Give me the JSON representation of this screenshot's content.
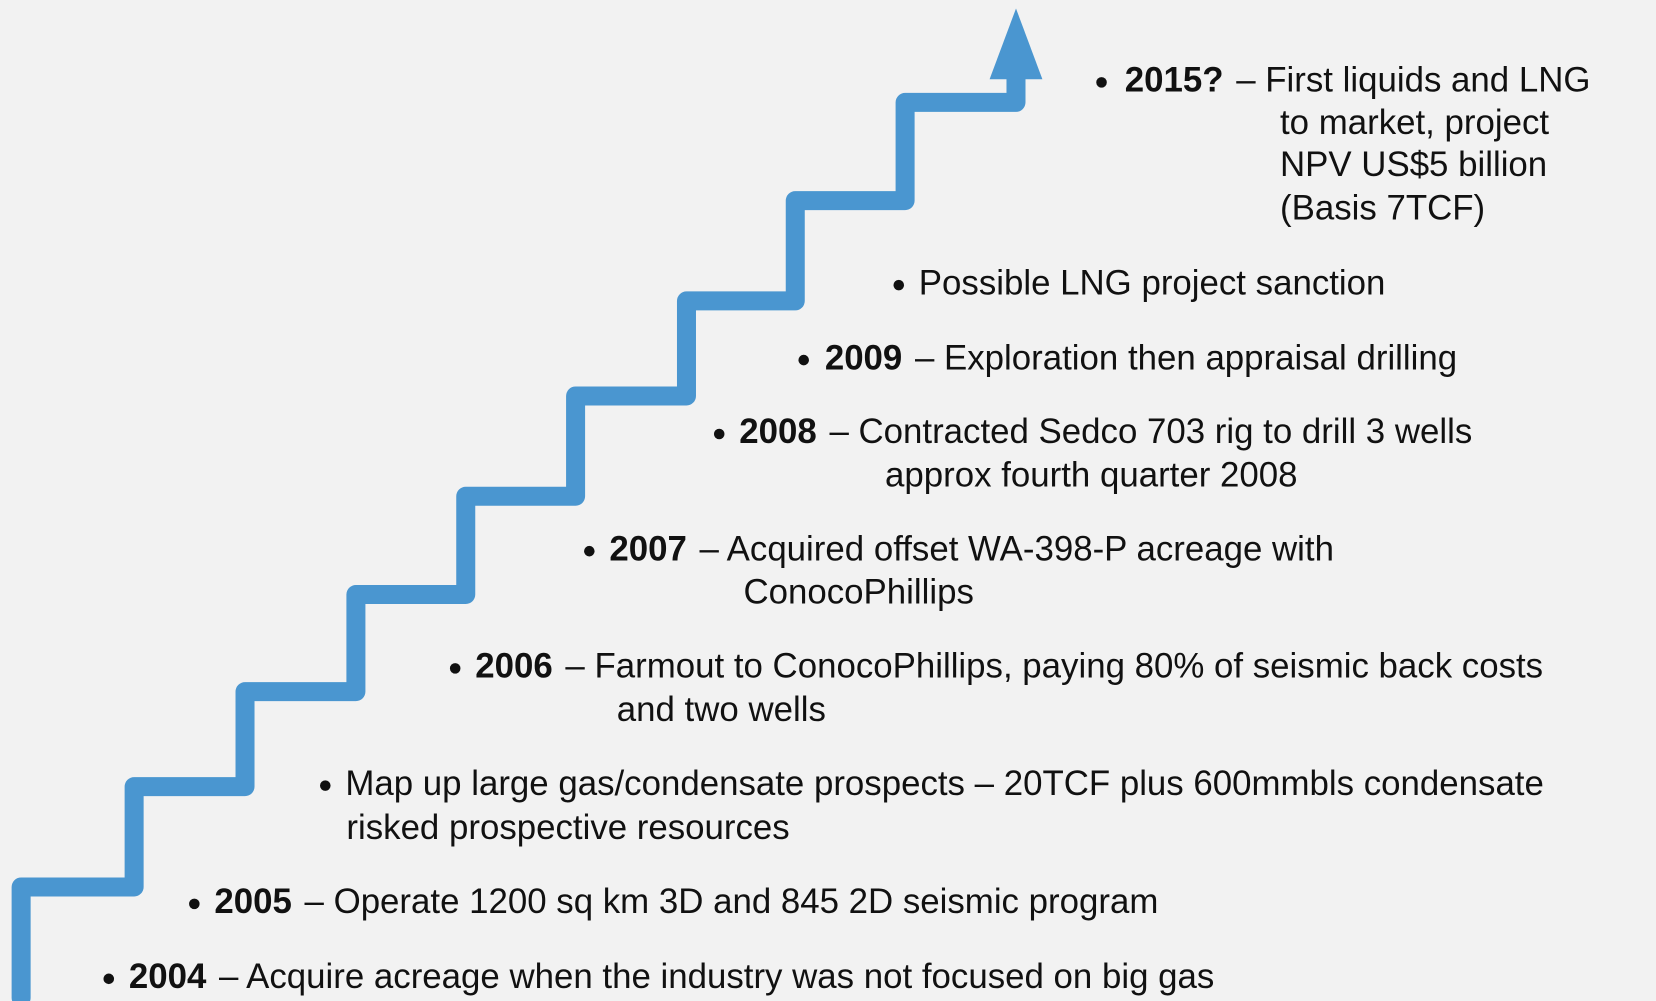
{
  "items": [
    {
      "year": "2015?",
      "lines": [
        "– First liquids and LNG",
        "to market, project",
        "NPV US$5 billion",
        "(Basis 7TCF)"
      ]
    },
    {
      "lines": [
        "Possible LNG project sanction"
      ]
    },
    {
      "year": "2009",
      "lines": [
        "– Exploration then appraisal drilling"
      ]
    },
    {
      "year": "2008",
      "lines": [
        "– Contracted Sedco 703 rig to drill 3 wells",
        "approx fourth quarter 2008"
      ]
    },
    {
      "year": "2007",
      "lines": [
        "– Acquired offset WA-398-P acreage with",
        "ConocoPhillips"
      ]
    },
    {
      "year": "2006",
      "lines": [
        "– Farmout to ConocoPhillips, paying 80% of seismic back costs",
        "and two wells"
      ]
    },
    {
      "lines": [
        "Map up large gas/condensate prospects – 20TCF plus 600mmbls condensate",
        "risked prospective resources"
      ]
    },
    {
      "year": "2005",
      "lines": [
        "– Operate 1200 sq km 3D and 845 2D seismic program"
      ]
    },
    {
      "year": "2004",
      "lines": [
        "– Acquire acreage when the industry was not focused on big gas"
      ]
    }
  ]
}
